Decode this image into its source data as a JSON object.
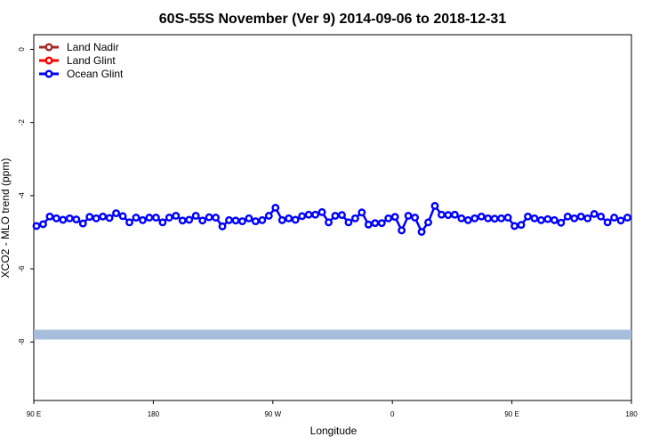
{
  "chart_data": {
    "type": "line",
    "title": "60S-55S November (Ver 9)   2014-09-06 to 2018-12-31",
    "xlabel": "Longitude",
    "ylabel": "XCO2 - MLO trend (ppm)",
    "x_ticks": [
      {
        "pos": 90,
        "label": "90 E"
      },
      {
        "pos": 180,
        "label": "180"
      },
      {
        "pos": 270,
        "label": "90 W"
      },
      {
        "pos": 360,
        "label": "0"
      },
      {
        "pos": 450,
        "label": "90 E"
      },
      {
        "pos": 540,
        "label": "180"
      }
    ],
    "xlim": [
      90,
      540
    ],
    "ylim": [
      -9.6,
      0.4
    ],
    "y_ticks": [
      0,
      -2,
      -4,
      -6,
      -8
    ],
    "legend_position": "top-left",
    "legend": [
      {
        "name": "Land Nadir",
        "color": "#a52a2a"
      },
      {
        "name": "Land Glint",
        "color": "#ff0000"
      },
      {
        "name": "Ocean Glint",
        "color": "#0000ff"
      }
    ],
    "series": [
      {
        "name": "Ocean Glint",
        "color": "#0000ff",
        "x": [
          92,
          97,
          102,
          107,
          112,
          117,
          122,
          127,
          132,
          137,
          142,
          147,
          152,
          157,
          162,
          167,
          172,
          177,
          182,
          187,
          192,
          197,
          202,
          207,
          212,
          217,
          222,
          227,
          232,
          237,
          242,
          247,
          252,
          257,
          262,
          267,
          272,
          277,
          282,
          287,
          292,
          297,
          302,
          307,
          312,
          317,
          322,
          327,
          332,
          337,
          342,
          347,
          352,
          357,
          362,
          367,
          372,
          377,
          382,
          387,
          392,
          397,
          402,
          407,
          412,
          417,
          422,
          427,
          432,
          437,
          442,
          447,
          452,
          457,
          462,
          467,
          472,
          477,
          482,
          487,
          492,
          497,
          502,
          507,
          512,
          517,
          522,
          527,
          532,
          537
        ],
        "y": [
          -4.83,
          -4.78,
          -4.57,
          -4.62,
          -4.66,
          -4.62,
          -4.65,
          -4.76,
          -4.58,
          -4.62,
          -4.57,
          -4.61,
          -4.48,
          -4.56,
          -4.73,
          -4.6,
          -4.67,
          -4.6,
          -4.6,
          -4.73,
          -4.6,
          -4.55,
          -4.68,
          -4.66,
          -4.55,
          -4.68,
          -4.59,
          -4.6,
          -4.84,
          -4.67,
          -4.68,
          -4.7,
          -4.62,
          -4.7,
          -4.67,
          -4.55,
          -4.33,
          -4.67,
          -4.62,
          -4.66,
          -4.56,
          -4.52,
          -4.52,
          -4.45,
          -4.73,
          -4.55,
          -4.53,
          -4.73,
          -4.62,
          -4.46,
          -4.79,
          -4.75,
          -4.75,
          -4.62,
          -4.58,
          -4.95,
          -4.55,
          -4.6,
          -4.99,
          -4.73,
          -4.28,
          -4.52,
          -4.53,
          -4.52,
          -4.62,
          -4.67,
          -4.62,
          -4.57,
          -4.62,
          -4.63,
          -4.62,
          -4.6,
          -4.83,
          -4.8,
          -4.57,
          -4.62,
          -4.67,
          -4.64,
          -4.67,
          -4.74,
          -4.57,
          -4.62,
          -4.57,
          -4.62,
          -4.5,
          -4.57,
          -4.73,
          -4.6,
          -4.68,
          -4.6
        ]
      }
    ],
    "band": {
      "y": -7.8,
      "color": "#a6bddb"
    }
  }
}
